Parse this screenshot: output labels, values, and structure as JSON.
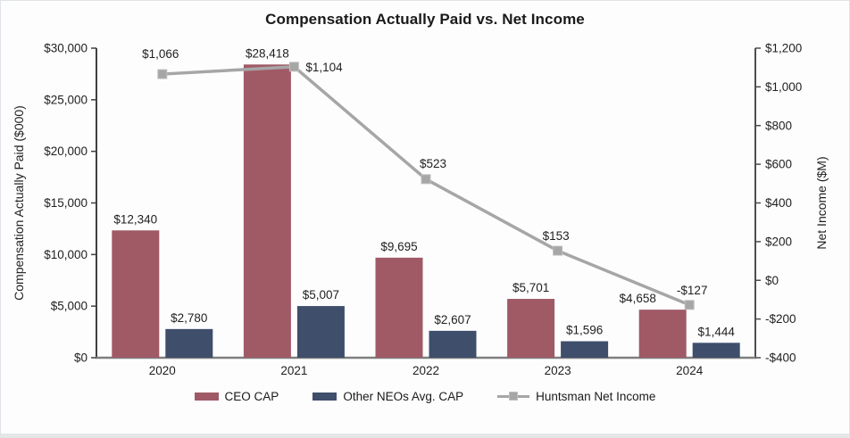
{
  "chart_data": {
    "type": "combo",
    "title": "Compensation Actually Paid vs. Net Income",
    "categories": [
      "2020",
      "2021",
      "2022",
      "2023",
      "2024"
    ],
    "series": [
      {
        "name": "CEO CAP",
        "type": "bar",
        "axis": "left",
        "color": "#a05a66",
        "values": [
          12340,
          28418,
          9695,
          5701,
          4658
        ],
        "labels": [
          "$12,340",
          "$28,418",
          "$9,695",
          "$5,701",
          "$4,658"
        ]
      },
      {
        "name": "Other NEOs Avg. CAP",
        "type": "bar",
        "axis": "left",
        "color": "#3e4e6b",
        "values": [
          2780,
          5007,
          2607,
          1596,
          1444
        ],
        "labels": [
          "$2,780",
          "$5,007",
          "$2,607",
          "$1,596",
          "$1,444"
        ]
      },
      {
        "name": "Huntsman Net Income",
        "type": "line",
        "axis": "right",
        "color": "#a6a6a6",
        "marker_color": "#a6a6a6",
        "values": [
          1066,
          1104,
          523,
          153,
          -127
        ],
        "labels": [
          "$1,066",
          "$1,104",
          "$523",
          "$153",
          "-$127"
        ]
      }
    ],
    "left_axis": {
      "title": "Compensation Actually Paid ($000)",
      "min": 0,
      "max": 30000,
      "step": 5000,
      "tick_labels": [
        "$0",
        "$5,000",
        "$10,000",
        "$15,000",
        "$20,000",
        "$25,000",
        "$30,000"
      ]
    },
    "right_axis": {
      "title": "Net Income ($M)",
      "min": -400,
      "max": 1200,
      "step": 200,
      "tick_labels": [
        "-$400",
        "-$200",
        "$0",
        "$200",
        "$400",
        "$600",
        "$800",
        "$1,000",
        "$1,200"
      ]
    },
    "legend_position": "bottom",
    "grid": false,
    "text_color": "#1f1f1f"
  }
}
